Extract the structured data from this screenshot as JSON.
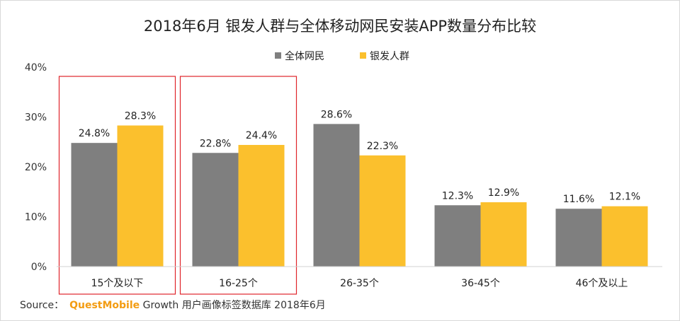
{
  "chart_data": {
    "type": "bar",
    "title": "2018年6月 银发人群与全体移动网民安装APP数量分布比较",
    "categories": [
      "15个及以下",
      "16-25个",
      "26-35个",
      "36-45个",
      "46个及以上"
    ],
    "series": [
      {
        "name": "全体网民",
        "color": "#7f7f7f",
        "values": [
          24.8,
          22.8,
          28.6,
          12.3,
          11.6
        ]
      },
      {
        "name": "银发人群",
        "color": "#fbc02d",
        "values": [
          28.3,
          24.4,
          22.3,
          12.9,
          12.1
        ]
      }
    ],
    "value_labels": [
      [
        "24.8%",
        "22.8%",
        "28.6%",
        "12.3%",
        "11.6%"
      ],
      [
        "28.3%",
        "24.4%",
        "22.3%",
        "12.9%",
        "12.1%"
      ]
    ],
    "yticks": [
      0,
      10,
      20,
      30,
      40
    ],
    "ytick_labels": [
      "0%",
      "10%",
      "20%",
      "30%",
      "40%"
    ],
    "ylim": [
      0,
      40
    ],
    "legend_position": "top",
    "highlighted_categories": [
      0,
      1
    ],
    "highlight_color": "#e0252b",
    "xlabel": "",
    "ylabel": ""
  },
  "source": {
    "label": "Source：",
    "brand": "QuestMobile",
    "text": "Growth 用户画像标签数据库 2018年6月"
  }
}
